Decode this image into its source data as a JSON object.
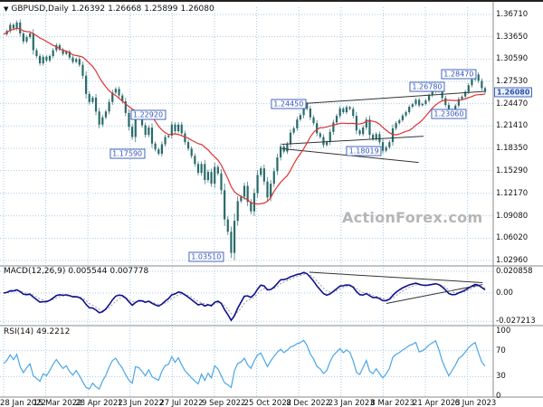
{
  "watermark": "ActionForex.com",
  "legend": {
    "symbol": "GBPUSD,Daily",
    "open": "1.26392",
    "high": "1.26668",
    "low": "1.25899",
    "close": "1.26080"
  },
  "macd_legend": {
    "name": "MACD(12,26,9)",
    "value1": "0.005544",
    "value2": "0.007778"
  },
  "rsi_legend": {
    "name": "RSI(14)",
    "value": "49.2212"
  },
  "colors": {
    "grid": "#a9c9e4",
    "candle": "#2a6b6b",
    "ma": "#e03232",
    "macd": "#10108f",
    "signal": "#9a9a9a",
    "rsi": "#4aa7e8",
    "annotation": "#3b5fc0",
    "trend": "#333333",
    "separator": "#8a8a8a"
  },
  "chart_data": {
    "type": "candlestick+indicators",
    "symbol": "GBPUSD",
    "timeframe": "Daily",
    "ohlc_display": {
      "open": 1.26392,
      "high": 1.26668,
      "low": 1.25899,
      "close": 1.2608
    },
    "x_axis": {
      "dates": [
        "28 Jan 2022",
        "15 Mar 2022",
        "28 Apr 2022",
        "13 Jun 2022",
        "27 Jul 2022",
        "9 Sep 2022",
        "25 Oct 2022",
        "8 Dec 2022",
        "23 Jan 2023",
        "8 Mar 2023",
        "21 Apr 2023",
        "6 Jun 2023"
      ]
    },
    "price_panel": {
      "price_range": [
        1.0296,
        1.3671
      ],
      "y_ticks": [
        {
          "label": "1.36710",
          "value": 1.3671
        },
        {
          "label": "1.33650",
          "value": 1.3365
        },
        {
          "label": "1.30590",
          "value": 1.3059
        },
        {
          "label": "1.27530",
          "value": 1.2753
        },
        {
          "label": "1.24470",
          "value": 1.2447
        },
        {
          "label": "1.21410",
          "value": 1.2141
        },
        {
          "label": "1.18350",
          "value": 1.1835
        },
        {
          "label": "1.15290",
          "value": 1.1529
        },
        {
          "label": "1.12170",
          "value": 1.1217
        },
        {
          "label": "1.09080",
          "value": 1.0908
        },
        {
          "label": "1.06020",
          "value": 1.0602
        },
        {
          "label": "1.02960",
          "value": 1.0296
        }
      ],
      "close_series": [
        1.34,
        1.3445,
        1.353,
        1.348,
        1.356,
        1.341,
        1.33,
        1.336,
        1.341,
        1.318,
        1.31,
        1.3,
        1.309,
        1.304,
        1.31,
        1.318,
        1.325,
        1.319,
        1.313,
        1.316,
        1.308,
        1.302,
        1.306,
        1.298,
        1.283,
        1.258,
        1.247,
        1.253,
        1.234,
        1.216,
        1.226,
        1.234,
        1.247,
        1.26,
        1.265,
        1.256,
        1.248,
        1.232,
        1.213,
        1.199,
        1.228,
        1.226,
        1.215,
        1.202,
        1.212,
        1.19,
        1.182,
        1.176,
        1.189,
        1.199,
        1.201,
        1.216,
        1.207,
        1.216,
        1.204,
        1.192,
        1.183,
        1.173,
        1.162,
        1.15,
        1.162,
        1.14,
        1.151,
        1.135,
        1.158,
        1.149,
        1.126,
        1.086,
        1.069,
        1.04,
        1.084,
        1.111,
        1.117,
        1.132,
        1.11,
        1.097,
        1.122,
        1.147,
        1.156,
        1.138,
        1.116,
        1.135,
        1.152,
        1.171,
        1.186,
        1.179,
        1.189,
        1.205,
        1.211,
        1.223,
        1.229,
        1.2445,
        1.238,
        1.226,
        1.218,
        1.204,
        1.199,
        1.188,
        1.192,
        1.206,
        1.219,
        1.228,
        1.238,
        1.233,
        1.24,
        1.2375,
        1.228,
        1.208,
        1.203,
        1.212,
        1.223,
        1.202,
        1.196,
        1.203,
        1.192,
        1.1802,
        1.185,
        1.192,
        1.211,
        1.218,
        1.222,
        1.2285,
        1.233,
        1.2405,
        1.244,
        1.25,
        1.2425,
        1.2445,
        1.249,
        1.256,
        1.2615,
        1.2679,
        1.262,
        1.2525,
        1.243,
        1.2306,
        1.236,
        1.242,
        1.251,
        1.2545,
        1.261,
        1.27,
        1.278,
        1.2847,
        1.276,
        1.266,
        1.2608
      ],
      "ma_window": 13,
      "annotations": [
        {
          "label": "1.22920",
          "x": 0.3,
          "price": 1.2292
        },
        {
          "label": "1.17590",
          "x": 0.258,
          "price": 1.1759
        },
        {
          "label": "1.03510",
          "x": 0.418,
          "price": 1.0351
        },
        {
          "label": "1.24450",
          "x": 0.585,
          "price": 1.2445
        },
        {
          "label": "1.26780",
          "x": 0.866,
          "price": 1.2678
        },
        {
          "label": "1.28470",
          "x": 0.93,
          "price": 1.2847
        },
        {
          "label": "1.23060",
          "x": 0.91,
          "price": 1.2306
        },
        {
          "label": "1.18019",
          "x": 0.738,
          "price": 1.18019
        }
      ],
      "last_price": {
        "label": "1.26080",
        "value": 1.2608
      },
      "trend_lines": [
        {
          "x1": 0.615,
          "p1": 1.2445,
          "x2": 0.998,
          "p2": 1.2615
        },
        {
          "x1": 0.578,
          "p1": 1.189,
          "x2": 0.872,
          "p2": 1.2
        },
        {
          "x1": 0.578,
          "p1": 1.183,
          "x2": 0.862,
          "p2": 1.164
        }
      ]
    },
    "macd_panel": {
      "values": [
        0.005544,
        0.007778
      ],
      "y_ticks": [
        {
          "label": "0.020858",
          "value": 0.020858
        },
        {
          "label": "0.00",
          "value": 0
        },
        {
          "label": "-0.027213",
          "value": -0.027213
        }
      ],
      "trend_lines": [
        {
          "x1": 0.635,
          "v1": 0.02,
          "x2": 0.995,
          "v2": 0.01
        },
        {
          "x1": 0.795,
          "v1": -0.01,
          "x2": 0.995,
          "v2": 0.0082
        }
      ]
    },
    "rsi_panel": {
      "value": 49.2212,
      "y_ticks": [
        {
          "label": "100",
          "value": 100,
          "grid": false
        },
        {
          "label": "70",
          "value": 70,
          "grid": true
        },
        {
          "label": "30",
          "value": 30,
          "grid": true
        },
        {
          "label": "0",
          "value": 0,
          "grid": false
        }
      ]
    }
  }
}
